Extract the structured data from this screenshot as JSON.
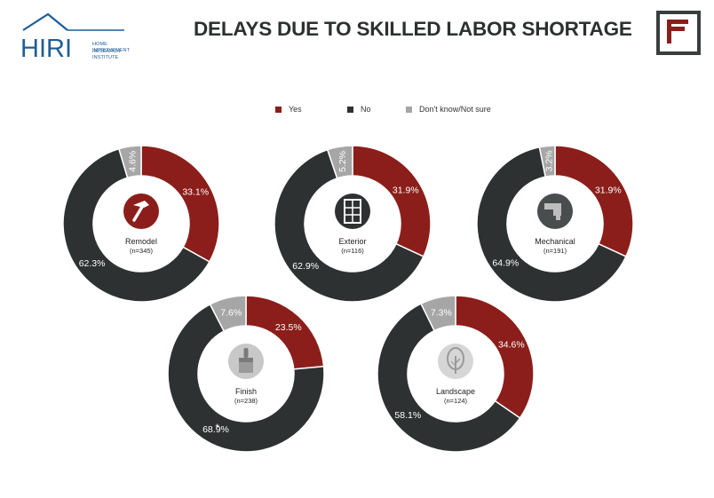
{
  "header": {
    "logo_text": "HIRI",
    "logo_sub_line1": "HOME IMPROVEMENT",
    "logo_sub_line2": "RESEARCH INSTITUTE",
    "title": "DELAYS DUE TO SKILLED LABOR SHORTAGE"
  },
  "legend": [
    {
      "label": "Yes",
      "color": "#8b1e1a"
    },
    {
      "label": "No",
      "color": "#2e3132"
    },
    {
      "label": "Don't know/Not sure",
      "color": "#a6a6a6"
    }
  ],
  "chart_data": {
    "type": "pie",
    "title": "DELAYS DUE TO SKILLED LABOR SHORTAGE",
    "series_names": [
      "Yes",
      "No",
      "Don't know/Not sure"
    ],
    "colors": {
      "Yes": "#8b1e1a",
      "No": "#2e3132",
      "Don't know/Not sure": "#a6a6a6"
    },
    "charts": [
      {
        "category": "Remodel",
        "n_label": "(n=345)",
        "icon": "hammer-icon",
        "values": [
          33.1,
          62.3,
          4.6
        ],
        "labels": [
          "33.1%",
          "62.3%",
          "4.6%"
        ],
        "stars": [
          true,
          false,
          false
        ]
      },
      {
        "category": "Exterior",
        "n_label": "(n=116)",
        "icon": "window-icon",
        "values": [
          31.9,
          62.9,
          5.2
        ],
        "labels": [
          "31.9%",
          "62.9%",
          "5.2%"
        ],
        "stars": [
          false,
          false,
          false
        ]
      },
      {
        "category": "Mechanical",
        "n_label": "(n=191)",
        "icon": "faucet-icon",
        "values": [
          31.9,
          64.9,
          3.2
        ],
        "labels": [
          "31.9%",
          "64.9%",
          "3.2%"
        ],
        "stars": [
          false,
          false,
          false
        ]
      },
      {
        "category": "Finish",
        "n_label": "(n=238)",
        "icon": "paintbrush-icon",
        "values": [
          23.5,
          68.9,
          7.6
        ],
        "labels": [
          "23.5%",
          "68.9%",
          "7.6%"
        ],
        "stars": [
          false,
          true,
          true
        ]
      },
      {
        "category": "Landscape",
        "n_label": "(n=124)",
        "icon": "tree-icon",
        "values": [
          34.6,
          58.1,
          7.3
        ],
        "labels": [
          "34.6%",
          "58.1%",
          "7.3%"
        ],
        "stars": [
          true,
          false,
          false
        ]
      }
    ]
  }
}
